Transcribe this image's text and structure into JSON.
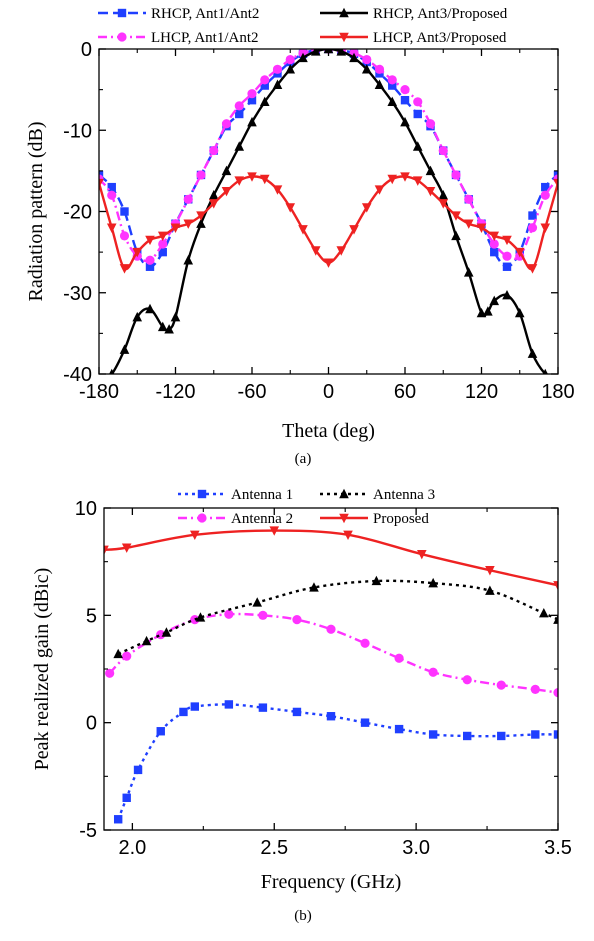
{
  "chart_data": [
    {
      "type": "line",
      "caption": "(a)",
      "xlabel": "Theta (deg)",
      "ylabel": "Radiation pattern (dB)",
      "xlim": [
        -180,
        180
      ],
      "ylim": [
        -40,
        0
      ],
      "xticks": [
        -180,
        -120,
        -60,
        0,
        60,
        120,
        180
      ],
      "yticks": [
        0,
        -10,
        -20,
        -30,
        -40
      ],
      "legend_position": "top",
      "series": [
        {
          "name": "RHCP, Ant1/Ant2",
          "color": "#1f3fff",
          "style": "dash",
          "marker": "square",
          "x": [
            -180,
            -170,
            -160,
            -150,
            -140,
            -130,
            -120,
            -110,
            -100,
            -90,
            -80,
            -70,
            -60,
            -50,
            -40,
            -30,
            -20,
            -10,
            0,
            10,
            20,
            30,
            40,
            50,
            60,
            70,
            80,
            90,
            100,
            110,
            120,
            130,
            140,
            150,
            160,
            170,
            180
          ],
          "y": [
            -15.5,
            -17,
            -20,
            -25,
            -26.8,
            -25,
            -21.5,
            -18.5,
            -15.5,
            -12.5,
            -9.5,
            -8,
            -6.3,
            -4.5,
            -3,
            -1.6,
            -0.6,
            -0.1,
            0,
            -0.1,
            -0.6,
            -1.6,
            -3,
            -4.5,
            -6.3,
            -8,
            -9.5,
            -12.5,
            -15.5,
            -18.5,
            -21.5,
            -25,
            -26.8,
            -25,
            -20.5,
            -17,
            -15.5
          ]
        },
        {
          "name": "LHCP, Ant1/Ant2",
          "color": "#ff33ff",
          "style": "dashdot",
          "marker": "circle",
          "x": [
            -180,
            -170,
            -160,
            -150,
            -140,
            -130,
            -120,
            -110,
            -100,
            -90,
            -80,
            -70,
            -60,
            -50,
            -40,
            -30,
            -20,
            -10,
            0,
            10,
            20,
            30,
            40,
            50,
            60,
            70,
            80,
            90,
            100,
            110,
            120,
            130,
            140,
            150,
            160,
            170,
            180
          ],
          "y": [
            -16,
            -18,
            -23,
            -25.5,
            -26,
            -24,
            -21.5,
            -18.5,
            -15.5,
            -12.5,
            -9.2,
            -7,
            -5.5,
            -3.8,
            -2.5,
            -1.3,
            -0.5,
            -0.1,
            0,
            -0.1,
            -0.5,
            -1.3,
            -2.5,
            -3.8,
            -5,
            -6.5,
            -9.2,
            -12.5,
            -15.5,
            -18.5,
            -21.5,
            -24,
            -25.5,
            -25.5,
            -22,
            -18,
            -16
          ]
        },
        {
          "name": "RHCP, Ant3/Proposed",
          "color": "#000000",
          "style": "solid",
          "marker": "triangle-up",
          "x": [
            -180,
            -170,
            -160,
            -150,
            -140,
            -130,
            -125,
            -120,
            -110,
            -100,
            -90,
            -80,
            -70,
            -60,
            -50,
            -40,
            -30,
            -20,
            -10,
            0,
            10,
            20,
            30,
            40,
            50,
            60,
            70,
            80,
            90,
            100,
            110,
            120,
            125,
            130,
            140,
            150,
            160,
            170,
            180
          ],
          "y": [
            -41,
            -40,
            -37,
            -33,
            -32,
            -34.2,
            -34.5,
            -33,
            -26,
            -21.5,
            -18,
            -15,
            -12,
            -9,
            -6.5,
            -4.4,
            -2.5,
            -1.1,
            -0.3,
            0,
            -0.3,
            -1.1,
            -2.5,
            -4.4,
            -6.5,
            -9,
            -12,
            -15,
            -18,
            -23,
            -27.5,
            -32.5,
            -32.3,
            -31,
            -30.3,
            -32.5,
            -37.5,
            -40,
            -41
          ]
        },
        {
          "name": "LHCP, Ant3/Proposed",
          "color": "#ee2222",
          "style": "solid",
          "marker": "triangle-down",
          "x": [
            -180,
            -170,
            -160,
            -150,
            -140,
            -130,
            -120,
            -110,
            -100,
            -90,
            -80,
            -70,
            -60,
            -50,
            -40,
            -30,
            -20,
            -10,
            0,
            10,
            20,
            30,
            40,
            50,
            60,
            70,
            80,
            90,
            100,
            110,
            120,
            130,
            140,
            150,
            160,
            170,
            180
          ],
          "y": [
            -16.5,
            -22,
            -27,
            -25,
            -23.5,
            -23,
            -22,
            -21.5,
            -20.5,
            -19,
            -17.5,
            -16.2,
            -15.7,
            -16,
            -17.3,
            -19.5,
            -22.2,
            -24.8,
            -26.3,
            -24.8,
            -22.2,
            -19.5,
            -17.3,
            -16,
            -15.7,
            -16.2,
            -17.5,
            -19,
            -20.5,
            -21.5,
            -22,
            -23,
            -23.5,
            -25,
            -27,
            -22,
            -16.5
          ]
        }
      ]
    },
    {
      "type": "line",
      "caption": "(b)",
      "xlabel": "Frequency (GHz)",
      "ylabel": "Peak realized gain (dBic)",
      "xlim": [
        1.9,
        3.5
      ],
      "ylim": [
        -5,
        10
      ],
      "xticks": [
        "2.0",
        "2.5",
        "3.0",
        "3.5"
      ],
      "yticks": [
        "10",
        "5",
        "0",
        "-5"
      ],
      "legend_position": "top",
      "series": [
        {
          "name": "Antenna 1",
          "color": "#1f3fff",
          "style": "dot",
          "marker": "square",
          "x": [
            1.95,
            1.98,
            2.02,
            2.1,
            2.18,
            2.22,
            2.34,
            2.46,
            2.58,
            2.7,
            2.82,
            2.94,
            3.06,
            3.18,
            3.3,
            3.42,
            3.5
          ],
          "y": [
            -4.5,
            -3.5,
            -2.2,
            -0.4,
            0.5,
            0.75,
            0.85,
            0.7,
            0.5,
            0.3,
            0.0,
            -0.3,
            -0.55,
            -0.62,
            -0.62,
            -0.55,
            -0.55
          ]
        },
        {
          "name": "Antenna 2",
          "color": "#ff33ff",
          "style": "dashdot",
          "marker": "circle",
          "x": [
            1.92,
            1.98,
            2.1,
            2.22,
            2.34,
            2.46,
            2.58,
            2.7,
            2.82,
            2.94,
            3.06,
            3.18,
            3.3,
            3.42,
            3.5
          ],
          "y": [
            2.3,
            3.1,
            4.1,
            4.8,
            5.05,
            5.0,
            4.8,
            4.35,
            3.7,
            3.0,
            2.35,
            2.0,
            1.75,
            1.55,
            1.4
          ]
        },
        {
          "name": "Antenna 3",
          "color": "#000000",
          "style": "dot",
          "marker": "triangle-up",
          "x": [
            1.95,
            2.05,
            2.12,
            2.24,
            2.44,
            2.64,
            2.86,
            3.06,
            3.26,
            3.45,
            3.5
          ],
          "y": [
            3.2,
            3.8,
            4.2,
            4.9,
            5.6,
            6.3,
            6.6,
            6.5,
            6.15,
            5.1,
            4.8
          ]
        },
        {
          "name": "Proposed",
          "color": "#ee2222",
          "style": "solid",
          "marker": "triangle-down",
          "x": [
            1.9,
            1.98,
            2.22,
            2.5,
            2.76,
            3.02,
            3.26,
            3.5
          ],
          "y": [
            8.05,
            8.15,
            8.75,
            8.95,
            8.75,
            7.85,
            7.1,
            6.4
          ]
        }
      ]
    }
  ]
}
